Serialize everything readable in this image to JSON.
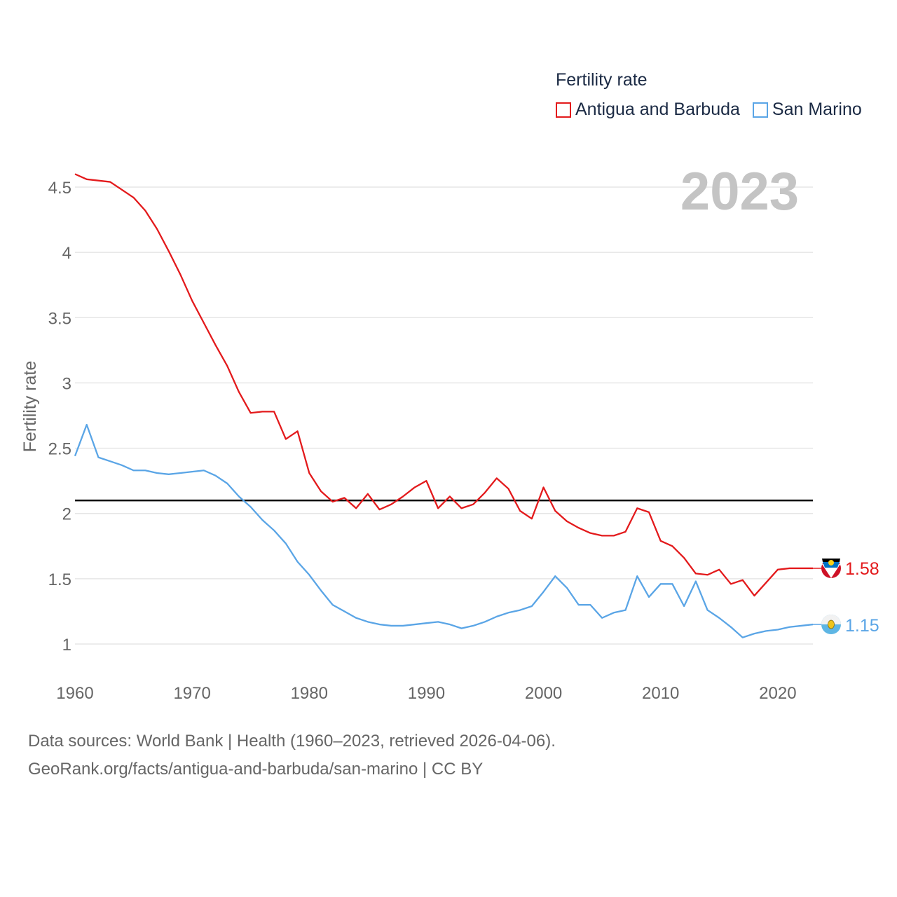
{
  "legend": {
    "title": "Fertility rate",
    "items": [
      {
        "label": "Antigua and Barbuda",
        "color": "#e31a1c"
      },
      {
        "label": "San Marino",
        "color": "#5aa5e6"
      }
    ]
  },
  "footer": {
    "line1": "Data sources: World Bank | Health (1960–2023, retrieved 2026-04-06).",
    "line2": "GeoRank.org/facts/antigua-and-barbuda/san-marino | CC BY"
  },
  "chart_data": {
    "type": "line",
    "year_label": "2023",
    "ylabel": "Fertility rate",
    "xlabel": "",
    "xlim": [
      1960,
      2023
    ],
    "ylim": [
      0.75,
      4.65
    ],
    "x_ticks": [
      1960,
      1970,
      1980,
      1990,
      2000,
      2010,
      2020
    ],
    "y_ticks": [
      {
        "value": 1,
        "label": "1"
      },
      {
        "value": 1.5,
        "label": "1.5"
      },
      {
        "value": 2,
        "label": "2"
      },
      {
        "value": 2.5,
        "label": "2.5"
      },
      {
        "value": 3,
        "label": "3"
      },
      {
        "value": 3.5,
        "label": "3.5"
      },
      {
        "value": 4,
        "label": "4"
      },
      {
        "value": 4.5,
        "label": "4.5"
      }
    ],
    "reference_line": 2.1,
    "x": [
      1960,
      1961,
      1962,
      1963,
      1964,
      1965,
      1966,
      1967,
      1968,
      1969,
      1970,
      1971,
      1972,
      1973,
      1974,
      1975,
      1976,
      1977,
      1978,
      1979,
      1980,
      1981,
      1982,
      1983,
      1984,
      1985,
      1986,
      1987,
      1988,
      1989,
      1990,
      1991,
      1992,
      1993,
      1994,
      1995,
      1996,
      1997,
      1998,
      1999,
      2000,
      2001,
      2002,
      2003,
      2004,
      2005,
      2006,
      2007,
      2008,
      2009,
      2010,
      2011,
      2012,
      2013,
      2014,
      2015,
      2016,
      2017,
      2018,
      2019,
      2020,
      2021,
      2022,
      2023
    ],
    "series": [
      {
        "name": "Antigua and Barbuda",
        "color": "#e31a1c",
        "end_label": "1.58",
        "values": [
          4.6,
          4.56,
          4.55,
          4.54,
          4.48,
          4.42,
          4.32,
          4.18,
          4.01,
          3.83,
          3.63,
          3.46,
          3.29,
          3.13,
          2.93,
          2.77,
          2.78,
          2.78,
          2.57,
          2.63,
          2.31,
          2.17,
          2.09,
          2.12,
          2.04,
          2.15,
          2.03,
          2.07,
          2.13,
          2.2,
          2.25,
          2.04,
          2.13,
          2.04,
          2.07,
          2.16,
          2.27,
          2.19,
          2.02,
          1.96,
          2.2,
          2.02,
          1.94,
          1.89,
          1.85,
          1.83,
          1.83,
          1.86,
          2.04,
          2.01,
          1.79,
          1.75,
          1.66,
          1.54,
          1.53,
          1.57,
          1.46,
          1.49,
          1.37,
          1.47,
          1.57,
          1.58,
          1.58,
          1.58
        ]
      },
      {
        "name": "San Marino",
        "color": "#5aa5e6",
        "end_label": "1.15",
        "values": [
          2.44,
          2.68,
          2.43,
          2.4,
          2.37,
          2.33,
          2.33,
          2.31,
          2.3,
          2.31,
          2.32,
          2.33,
          2.29,
          2.23,
          2.13,
          2.05,
          1.95,
          1.87,
          1.77,
          1.63,
          1.53,
          1.41,
          1.3,
          1.25,
          1.2,
          1.17,
          1.15,
          1.14,
          1.14,
          1.15,
          1.16,
          1.17,
          1.15,
          1.12,
          1.14,
          1.17,
          1.21,
          1.24,
          1.26,
          1.29,
          1.4,
          1.52,
          1.43,
          1.3,
          1.3,
          1.2,
          1.24,
          1.26,
          1.52,
          1.36,
          1.46,
          1.46,
          1.29,
          1.48,
          1.26,
          1.2,
          1.13,
          1.05,
          1.08,
          1.1,
          1.11,
          1.13,
          1.14,
          1.15
        ]
      }
    ]
  }
}
